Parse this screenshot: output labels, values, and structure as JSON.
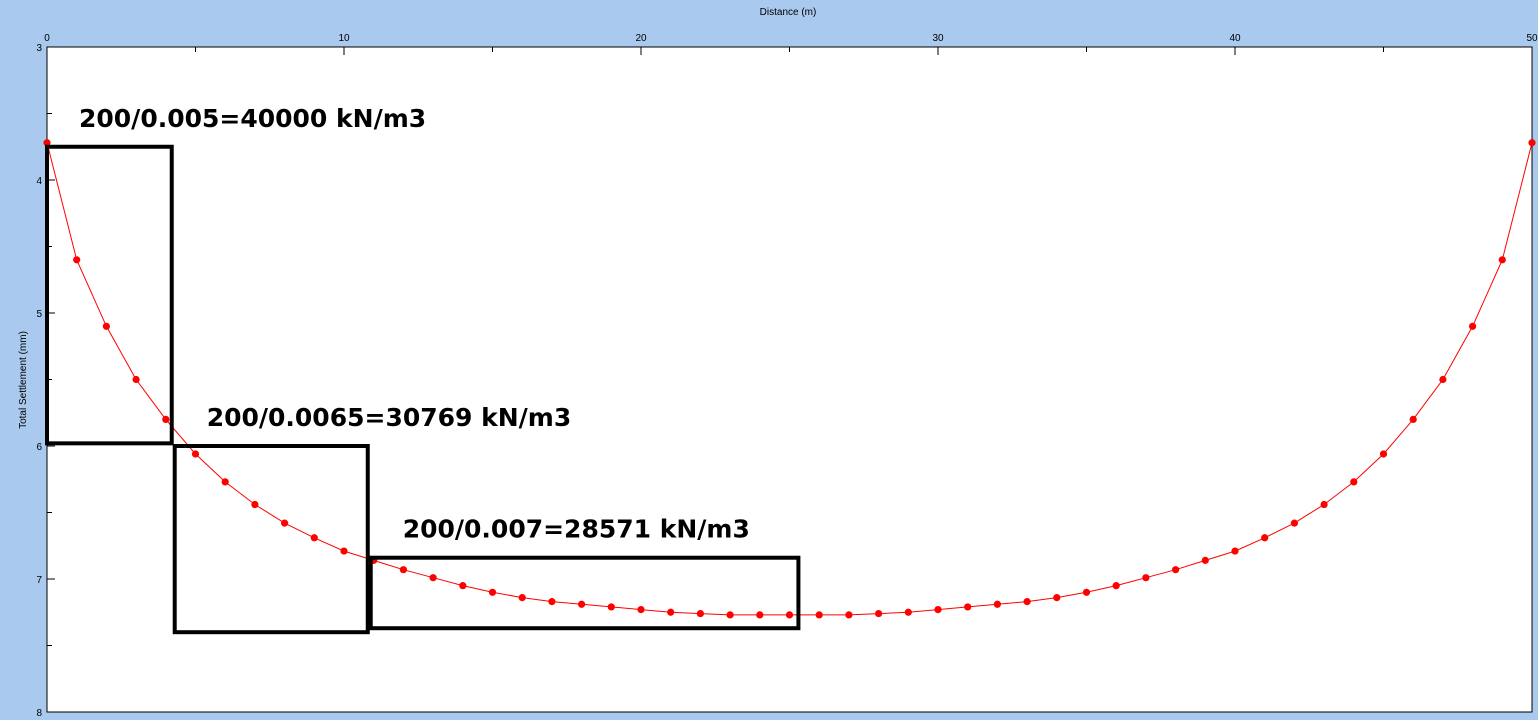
{
  "chart_data": {
    "type": "line",
    "xlabel": "Distance (m)",
    "ylabel": "Total Settlement (mm)",
    "xlim": [
      0,
      50
    ],
    "ylim": [
      3,
      8
    ],
    "y_inverted": true,
    "x_axis_position": "top",
    "x_ticks": [
      0,
      10,
      20,
      30,
      40,
      50
    ],
    "y_ticks": [
      3,
      4,
      5,
      6,
      7,
      8
    ],
    "grid": false,
    "series": [
      {
        "color": "#ff0000",
        "marker": "circle",
        "x": [
          0,
          1,
          2,
          3,
          4,
          5,
          6,
          7,
          8,
          9,
          10,
          11,
          12,
          13,
          14,
          15,
          16,
          17,
          18,
          19,
          20,
          21,
          22,
          23,
          24,
          25,
          26,
          27,
          28,
          29,
          30,
          31,
          32,
          33,
          34,
          35,
          36,
          37,
          38,
          39,
          40,
          41,
          42,
          43,
          44,
          45,
          46,
          47,
          48,
          49,
          50
        ],
        "y": [
          3.72,
          4.6,
          5.1,
          5.5,
          5.8,
          6.06,
          6.27,
          6.44,
          6.58,
          6.69,
          6.79,
          6.86,
          6.93,
          6.99,
          7.05,
          7.1,
          7.14,
          7.17,
          7.19,
          7.21,
          7.23,
          7.25,
          7.26,
          7.27,
          7.27,
          7.27,
          7.27,
          7.27,
          7.26,
          7.25,
          7.23,
          7.21,
          7.19,
          7.17,
          7.14,
          7.1,
          7.05,
          6.99,
          6.93,
          6.86,
          6.79,
          6.69,
          6.58,
          6.44,
          6.27,
          6.06,
          5.8,
          5.5,
          5.1,
          4.6,
          3.72
        ]
      }
    ],
    "annotations": [
      {
        "text": "200/0.005=40000 kN/m3",
        "box_x": [
          0,
          4.2
        ],
        "box_y": [
          3.75,
          5.98
        ]
      },
      {
        "text": "200/0.0065=30769 kN/m3",
        "box_x": [
          4.3,
          10.8
        ],
        "box_y": [
          6.0,
          7.4
        ]
      },
      {
        "text": "200/0.007=28571 kN/m3",
        "box_x": [
          10.9,
          25.3
        ],
        "box_y": [
          6.84,
          7.37
        ]
      }
    ]
  }
}
